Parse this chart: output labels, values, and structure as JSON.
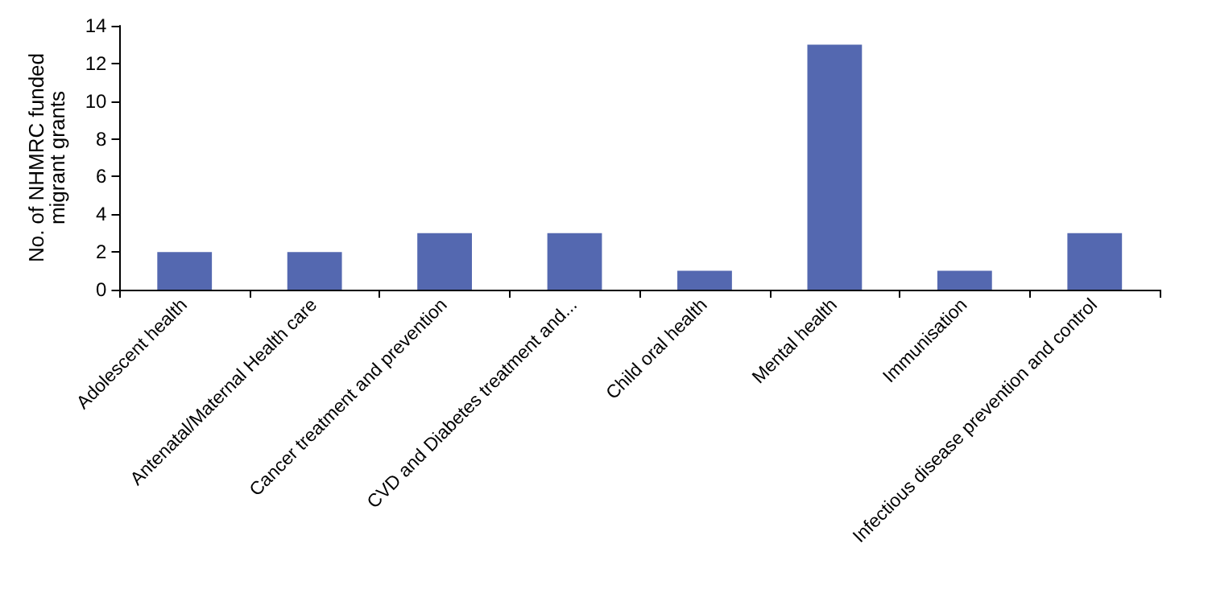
{
  "chart_data": {
    "type": "bar",
    "ylabel": "No. of NHMRC funded\nmigrant grants",
    "categories": [
      "Adolescent health",
      "Antenatal/Maternal Health care",
      "Cancer treatment and prevention",
      "CVD and Diabetes treatment and...",
      "Child oral health",
      "Mental health",
      "Immunisation",
      "Infectious disease prevention and control"
    ],
    "values": [
      2,
      2,
      3,
      3,
      1,
      13,
      1,
      3
    ],
    "color": "#5468b0",
    "ylim": [
      0,
      14
    ],
    "yticks": [
      0,
      2,
      4,
      6,
      8,
      10,
      12,
      14
    ],
    "grid": false
  }
}
